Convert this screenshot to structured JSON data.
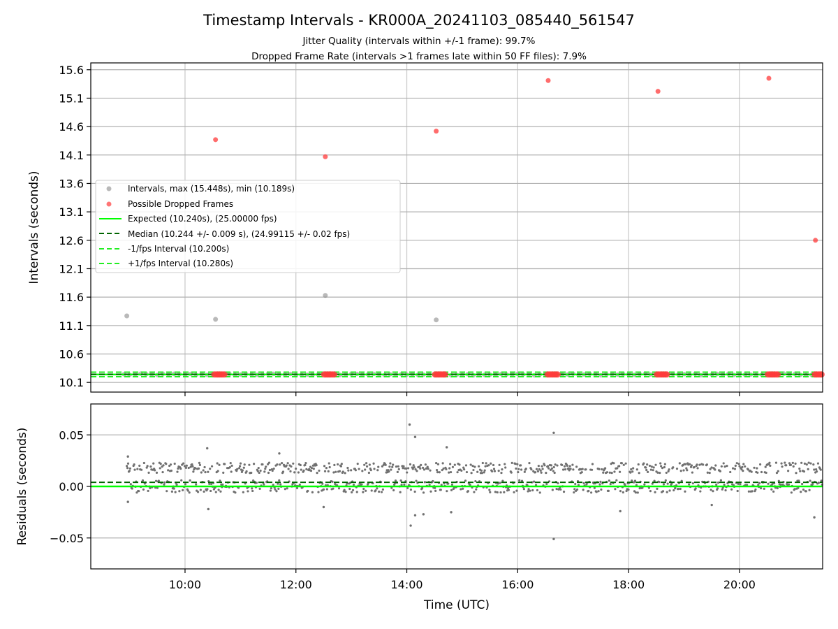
{
  "figure": {
    "title": "Timestamp Intervals - KR000A_20241103_085440_561547",
    "subtitle_1": "Jitter Quality (intervals within +/-1 frame): 99.7%",
    "subtitle_2": "Dropped Frame Rate (intervals >1 frames late within 50 FF files): 7.9%"
  },
  "colors": {
    "interval_points": "#808080",
    "dropped_points": "#ff3b3b",
    "expected_line": "#00ff00",
    "median_line": "#006400",
    "fps_bounds": "#22ee22",
    "grid": "#b0b0b0",
    "residual_points": "#707070"
  },
  "chart_data": [
    {
      "type": "scatter",
      "name": "intervals-panel",
      "ylabel": "Intervals (seconds)",
      "xlim": [
        8.3,
        21.5
      ],
      "ylim": [
        9.93,
        15.72
      ],
      "yticks": [
        10.1,
        10.6,
        11.1,
        11.6,
        12.1,
        12.6,
        13.1,
        13.6,
        14.1,
        14.6,
        15.1,
        15.6
      ],
      "ytick_labels": [
        "10.1",
        "10.6",
        "11.1",
        "11.6",
        "12.1",
        "12.6",
        "13.1",
        "13.6",
        "14.1",
        "14.6",
        "15.1",
        "15.6"
      ],
      "xticks": [
        10,
        12,
        14,
        16,
        18,
        20
      ],
      "grid": true,
      "legend_placement": "center-left",
      "legend": [
        "Intervals, max (15.448s), min (10.189s)",
        "Possible Dropped Frames",
        "Expected (10.240s), (25.00000 fps)",
        "Median (10.244 +/- 0.009 s), (24.99115 +/- 0.02 fps)",
        "-1/fps Interval (10.200s)",
        "+1/fps Interval (10.280s)"
      ],
      "reference_lines": {
        "expected": 10.24,
        "median": 10.244,
        "minus_1_fps": 10.2,
        "plus_1_fps": 10.28
      },
      "interval_outliers": [
        {
          "x": 8.95,
          "y": 11.27
        },
        {
          "x": 10.55,
          "y": 11.21
        },
        {
          "x": 12.53,
          "y": 11.63
        },
        {
          "x": 14.53,
          "y": 11.2
        }
      ],
      "baseline_points": {
        "x_start": 8.9,
        "x_end": 21.5,
        "y": 10.24,
        "spread": 0.03
      },
      "dropped_frames": [
        {
          "x": 10.55,
          "y": 14.37
        },
        {
          "x": 12.53,
          "y": 14.07
        },
        {
          "x": 14.53,
          "y": 14.52
        },
        {
          "x": 16.55,
          "y": 15.41
        },
        {
          "x": 18.53,
          "y": 15.22
        },
        {
          "x": 20.53,
          "y": 15.45
        },
        {
          "x": 21.37,
          "y": 12.6
        }
      ],
      "dropped_frame_clusters": [
        10.62,
        12.6,
        14.6,
        16.63,
        18.6,
        20.6,
        21.45
      ],
      "dropped_cluster_y": 10.24
    },
    {
      "type": "scatter",
      "name": "residuals-panel",
      "xlabel": "Time (UTC)",
      "ylabel": "Residuals (seconds)",
      "xlim": [
        8.3,
        21.5
      ],
      "ylim": [
        -0.08,
        0.08
      ],
      "yticks": [
        -0.05,
        0.0,
        0.05
      ],
      "ytick_labels": [
        "−0.05",
        "0.00",
        "0.05"
      ],
      "xticks": [
        10,
        12,
        14,
        16,
        18,
        20
      ],
      "xtick_labels": [
        "10:00",
        "12:00",
        "14:00",
        "16:00",
        "18:00",
        "20:00"
      ],
      "grid": true,
      "reference_lines": {
        "zero": 0.0,
        "median_offset": 0.004
      },
      "residual_bands": [
        {
          "center": 0.0,
          "spread": 0.006
        },
        {
          "center": 0.018,
          "spread": 0.005
        }
      ],
      "residual_outliers": [
        {
          "x": 8.97,
          "y": 0.029
        },
        {
          "x": 8.97,
          "y": -0.015
        },
        {
          "x": 10.4,
          "y": 0.037
        },
        {
          "x": 10.42,
          "y": -0.022
        },
        {
          "x": 14.05,
          "y": 0.06
        },
        {
          "x": 14.15,
          "y": 0.048
        },
        {
          "x": 14.07,
          "y": -0.038
        },
        {
          "x": 14.15,
          "y": -0.028
        },
        {
          "x": 14.3,
          "y": -0.027
        },
        {
          "x": 14.72,
          "y": 0.038
        },
        {
          "x": 14.8,
          "y": -0.025
        },
        {
          "x": 16.65,
          "y": 0.052
        },
        {
          "x": 16.65,
          "y": -0.051
        },
        {
          "x": 17.85,
          "y": -0.024
        },
        {
          "x": 21.35,
          "y": -0.03
        },
        {
          "x": 12.5,
          "y": -0.02
        },
        {
          "x": 11.7,
          "y": 0.032
        },
        {
          "x": 19.5,
          "y": -0.018
        }
      ]
    }
  ]
}
